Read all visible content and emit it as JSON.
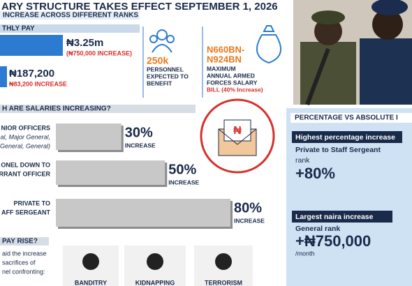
{
  "header": {
    "title": "ARY STRUCTURE TAKES EFFECT SEPTEMBER 1, 2026",
    "subtitle": "INCREASE ACROSS DIFFERENT RANKS"
  },
  "monthly_pay": {
    "heading": "THLY PAY",
    "top_amount": "₦3.25m",
    "top_increase": "(₦750,000 INCREASE)",
    "bottom_amount": "₦187,200",
    "bottom_increase": "₦83,200 INCREASE"
  },
  "personnel": {
    "figure": "250k",
    "lines": [
      "PERSONNEL",
      "EXPECTED TO",
      "BENEFIT"
    ]
  },
  "salary_bill": {
    "figure_lines": [
      "N660BN-",
      "N924BN"
    ],
    "lines": [
      "MAXIMUM",
      "ANNUAL ARMED",
      "FORCES SALARY",
      "BILL (40% Increase)"
    ]
  },
  "ranks": {
    "heading": "H ARE SALARIES INCREASING?",
    "rows": [
      {
        "lines": [
          "NIOR OFFICERS",
          "al, Major General,",
          "General, General)"
        ]
      },
      {
        "lines": [
          "ONEL DOWN TO",
          "RRANT OFFICER"
        ]
      },
      {
        "lines": [
          "PRIVATE TO",
          "AFF SERGEANT"
        ]
      }
    ],
    "values": [
      30,
      50,
      80
    ],
    "value_labels": [
      "30%",
      "50%",
      "80%"
    ],
    "increase_label": "INCREASE"
  },
  "comparison": {
    "heading": "PERCENTAGE  VS ABSOLUTE I",
    "highest_pct": {
      "label": "Highest percentage increase",
      "lines": [
        "Private to Staff Sergeant",
        "rank"
      ],
      "figure": "+80%"
    },
    "largest_naira": {
      "label": "Largest naira increase",
      "lines": [
        "General rank"
      ],
      "figure": "+₦750,000",
      "unit": "/month"
    }
  },
  "why": {
    "heading": "PAY RISE?",
    "lines": [
      "aid the increase",
      "sacrifices of",
      "nel confronting:"
    ],
    "threats": [
      "BANDITRY",
      "KIDNAPPING",
      "TERRORISM"
    ]
  }
}
